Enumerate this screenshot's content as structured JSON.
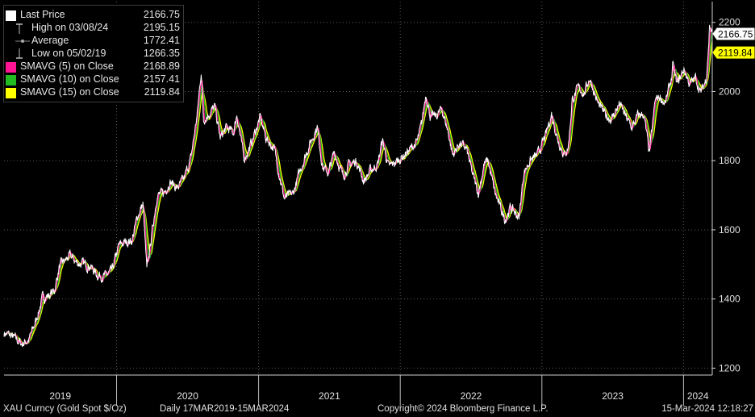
{
  "colors": {
    "background": "#000000",
    "grid": "#5a5a5a",
    "price_line": "#ffffff",
    "sma5": "#ff1493",
    "sma10": "#22bb22",
    "sma15": "#ffff00",
    "last_price_callout": "#ffffff",
    "sma15_callout": "#ffff00"
  },
  "legend": {
    "items": [
      {
        "label": "Last Price",
        "value": "2166.75",
        "icon": "white-square"
      },
      {
        "label": "High on 03/08/24",
        "value": "2195.15",
        "icon": "high-marker-icon"
      },
      {
        "label": "Average",
        "value": "1772.41",
        "icon": "average-marker-icon"
      },
      {
        "label": "Low on 05/02/19",
        "value": "1266.35",
        "icon": "low-marker-icon"
      },
      {
        "label": "SMAVG (5)  on Close",
        "value": "2168.89",
        "icon": "magenta-square"
      },
      {
        "label": "SMAVG (10)  on Close",
        "value": "2157.41",
        "icon": "green-square"
      },
      {
        "label": "SMAVG (15)  on Close",
        "value": "2119.84",
        "icon": "yellow-square"
      }
    ]
  },
  "callouts": {
    "last_price": "2166.75",
    "sma15": "2119.84"
  },
  "footer": {
    "security": "XAU Curncy (Gold Spot  $/Oz)",
    "range": "Daily 17MAR2019-15MAR2024",
    "copyright": "Copyright© 2024 Bloomberg Finance L.P.",
    "timestamp": "15-Mar-2024 12:18:27"
  },
  "chart_data": {
    "type": "line",
    "title": "",
    "xlabel": "",
    "ylabel": "",
    "ylim": [
      1180,
      2260
    ],
    "xlim": [
      "2019-03-17",
      "2024-03-15"
    ],
    "y_ticks": [
      1200,
      1400,
      1600,
      1800,
      2000,
      2200
    ],
    "x_tick_labels": [
      "2019",
      "2020",
      "2021",
      "2022",
      "2023",
      "2024"
    ],
    "grid": true,
    "legend_position": "top-left",
    "y_axis_side": "right",
    "series": [
      {
        "name": "Last Price",
        "color": "#ffffff",
        "x": [
          "2019-03-17",
          "2019-04-01",
          "2019-04-15",
          "2019-05-02",
          "2019-05-20",
          "2019-06-05",
          "2019-06-25",
          "2019-07-10",
          "2019-07-25",
          "2019-08-07",
          "2019-08-20",
          "2019-09-04",
          "2019-09-20",
          "2019-10-10",
          "2019-10-25",
          "2019-11-12",
          "2019-12-02",
          "2019-12-20",
          "2020-01-07",
          "2020-01-25",
          "2020-02-10",
          "2020-02-24",
          "2020-03-09",
          "2020-03-19",
          "2020-04-01",
          "2020-04-14",
          "2020-05-01",
          "2020-05-18",
          "2020-06-05",
          "2020-06-22",
          "2020-07-10",
          "2020-07-27",
          "2020-08-06",
          "2020-08-12",
          "2020-08-25",
          "2020-09-10",
          "2020-09-24",
          "2020-10-10",
          "2020-10-28",
          "2020-11-06",
          "2020-11-24",
          "2020-12-10",
          "2021-01-05",
          "2021-01-20",
          "2021-02-10",
          "2021-03-08",
          "2021-03-31",
          "2021-04-20",
          "2021-05-10",
          "2021-06-01",
          "2021-06-15",
          "2021-06-30",
          "2021-07-15",
          "2021-08-06",
          "2021-08-20",
          "2021-09-10",
          "2021-09-29",
          "2021-10-15",
          "2021-11-04",
          "2021-11-16",
          "2021-12-02",
          "2021-12-20",
          "2022-01-10",
          "2022-01-28",
          "2022-02-14",
          "2022-02-25",
          "2022-03-08",
          "2022-03-20",
          "2022-04-05",
          "2022-04-18",
          "2022-05-05",
          "2022-05-16",
          "2022-06-02",
          "2022-06-20",
          "2022-07-05",
          "2022-07-21",
          "2022-08-05",
          "2022-08-15",
          "2022-09-01",
          "2022-09-15",
          "2022-09-28",
          "2022-10-12",
          "2022-11-03",
          "2022-11-15",
          "2022-12-01",
          "2022-12-20",
          "2023-01-10",
          "2023-01-26",
          "2023-02-10",
          "2023-02-28",
          "2023-03-10",
          "2023-03-20",
          "2023-04-05",
          "2023-04-20",
          "2023-05-04",
          "2023-05-25",
          "2023-06-15",
          "2023-06-29",
          "2023-07-20",
          "2023-08-08",
          "2023-08-21",
          "2023-09-05",
          "2023-09-20",
          "2023-10-05",
          "2023-10-20",
          "2023-11-01",
          "2023-11-15",
          "2023-12-01",
          "2023-12-04",
          "2023-12-15",
          "2024-01-02",
          "2024-01-17",
          "2024-02-01",
          "2024-02-14",
          "2024-02-28",
          "2024-03-06",
          "2024-03-08",
          "2024-03-15"
        ],
        "values": [
          1302,
          1295,
          1285,
          1270,
          1282,
          1330,
          1405,
          1410,
          1425,
          1495,
          1510,
          1525,
          1505,
          1500,
          1495,
          1470,
          1465,
          1480,
          1555,
          1565,
          1570,
          1640,
          1675,
          1480,
          1590,
          1700,
          1705,
          1740,
          1720,
          1745,
          1805,
          1935,
          2060,
          1920,
          1935,
          1955,
          1865,
          1895,
          1880,
          1935,
          1805,
          1840,
          1925,
          1865,
          1835,
          1690,
          1705,
          1780,
          1840,
          1900,
          1780,
          1765,
          1825,
          1755,
          1785,
          1800,
          1740,
          1770,
          1790,
          1860,
          1780,
          1795,
          1815,
          1835,
          1855,
          1905,
          1995,
          1925,
          1930,
          1950,
          1880,
          1815,
          1850,
          1835,
          1765,
          1705,
          1790,
          1800,
          1710,
          1665,
          1630,
          1665,
          1635,
          1765,
          1800,
          1815,
          1870,
          1935,
          1865,
          1815,
          1840,
          1975,
          2010,
          1995,
          2040,
          1965,
          1930,
          1920,
          1965,
          1920,
          1895,
          1930,
          1935,
          1820,
          1975,
          1985,
          1965,
          2040,
          2075,
          2020,
          2065,
          2020,
          2040,
          1995,
          2035,
          2140,
          2195,
          2166.75
        ]
      },
      {
        "name": "SMAVG (5)  on Close",
        "color": "#ff1493",
        "last": 2168.89
      },
      {
        "name": "SMAVG (10)  on Close",
        "color": "#22bb22",
        "last": 2157.41
      },
      {
        "name": "SMAVG (15)  on Close",
        "color": "#ffff00",
        "last": 2119.84
      }
    ]
  }
}
